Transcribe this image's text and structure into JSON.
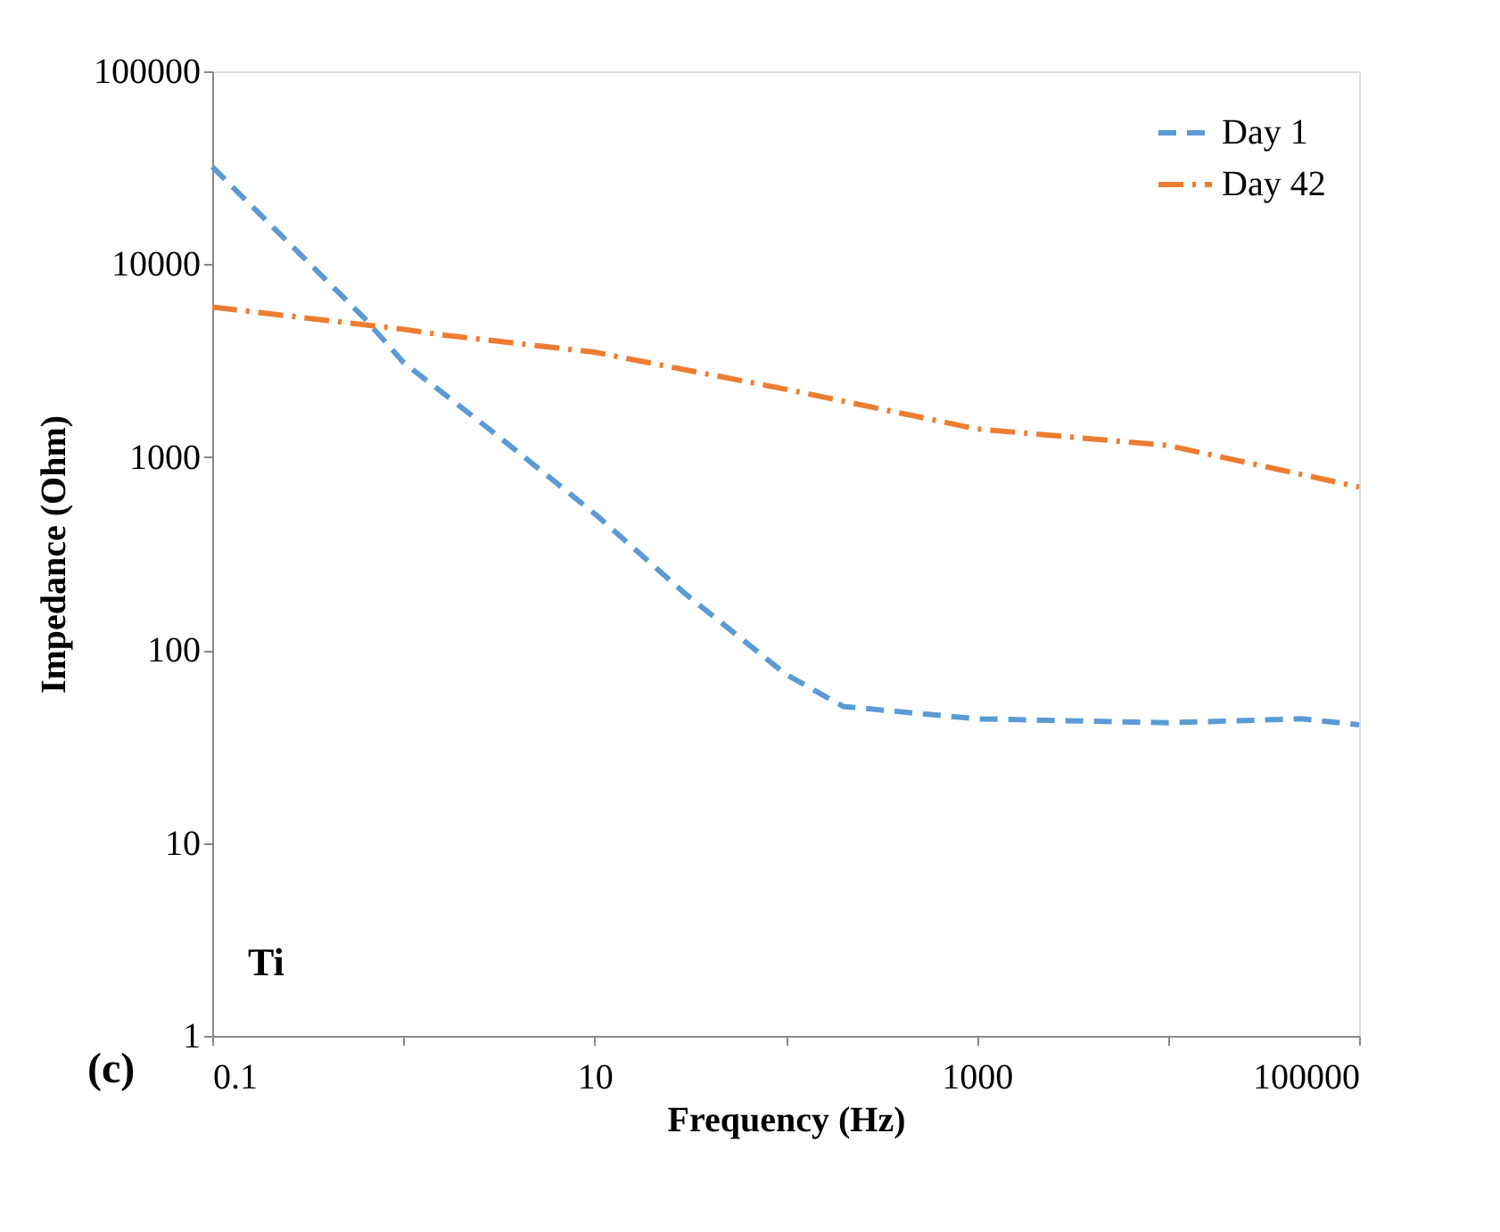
{
  "chart_data": {
    "type": "line",
    "xlabel": "Frequency (Hz)",
    "ylabel": "Impedance (Ohm)",
    "log": "xy",
    "xlim": [
      0.1,
      100000
    ],
    "ylim": [
      1,
      100000
    ],
    "xticks": [
      0.1,
      {
        "value": 1,
        "label": null
      },
      10,
      {
        "value": 100,
        "label": null
      },
      1000,
      {
        "value": 10000,
        "label": null
      },
      100000
    ],
    "yticks": [
      1,
      10,
      100,
      1000,
      10000,
      100000
    ],
    "grid": false,
    "legend": "top right",
    "marker": "none",
    "annotations": [
      "Ti",
      "(c)"
    ],
    "series": [
      {
        "name": "Day 1",
        "color": "#5b9bd5",
        "line_style": "dashed",
        "x": [
          0.1,
          0.62,
          1,
          3,
          10,
          30,
          100,
          200,
          1000,
          10000,
          50000,
          100000
        ],
        "values": [
          32000,
          5300,
          3100,
          1330,
          510,
          195,
          75,
          51,
          44,
          42,
          44,
          41
        ]
      },
      {
        "name": "Day 42",
        "color": "#ed7d31",
        "line_style": "dashdot",
        "x": [
          0.1,
          1,
          1.6,
          10,
          100,
          1000,
          10000,
          100000
        ],
        "values": [
          6000,
          4600,
          4300,
          3500,
          2250,
          1400,
          1150,
          700
        ]
      }
    ]
  }
}
